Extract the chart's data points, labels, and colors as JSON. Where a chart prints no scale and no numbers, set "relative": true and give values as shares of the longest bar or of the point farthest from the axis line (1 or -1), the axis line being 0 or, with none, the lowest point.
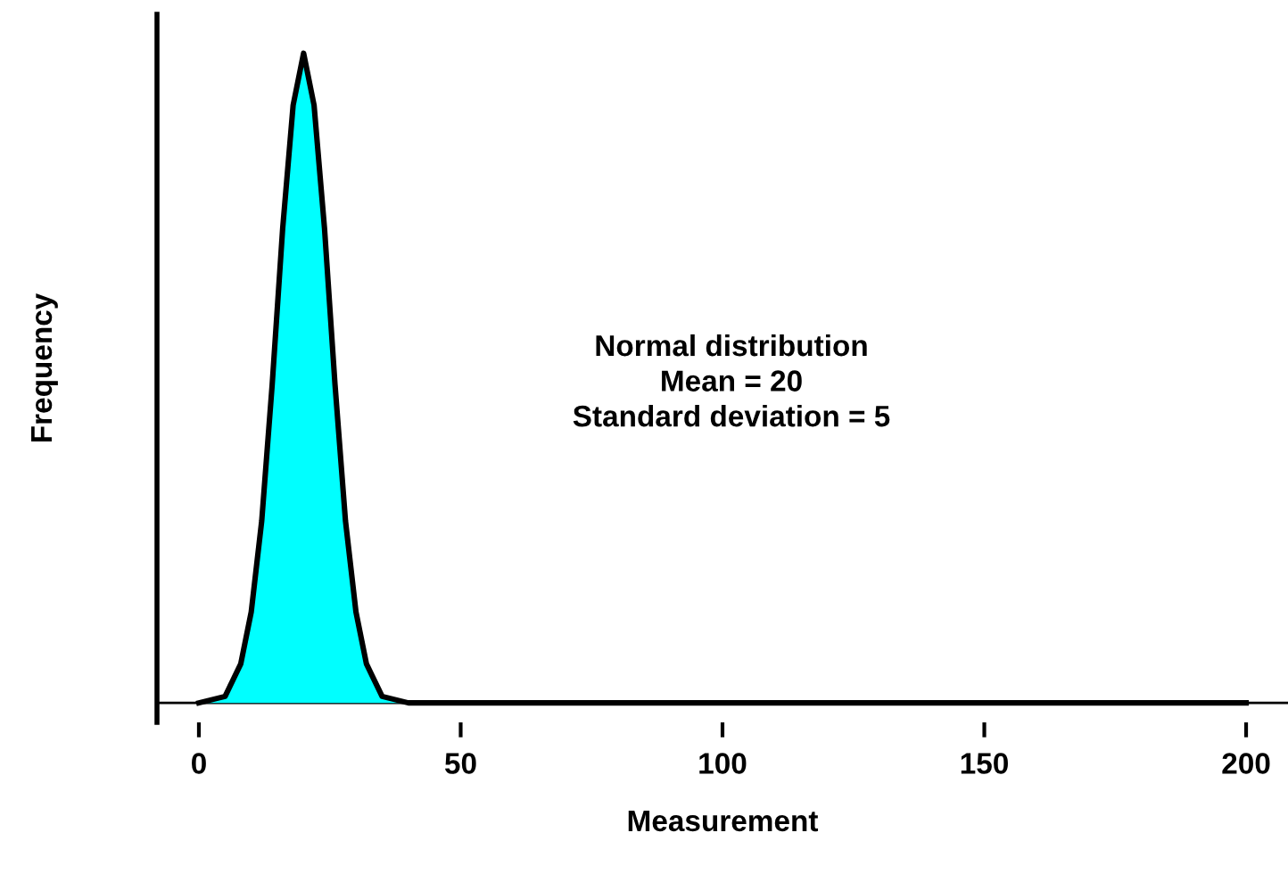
{
  "chart_data": {
    "type": "area",
    "relative": true,
    "xlabel": "Measurement",
    "ylabel": "Frequency",
    "x": [
      0,
      5,
      8,
      10,
      12,
      14,
      16,
      18,
      20,
      22,
      24,
      26,
      28,
      30,
      32,
      35,
      40,
      50,
      100,
      150,
      200
    ],
    "series": [
      {
        "color": "#00ffff",
        "values": [
          0,
          0.01,
          0.06,
          0.14,
          0.28,
          0.49,
          0.73,
          0.92,
          1,
          0.92,
          0.73,
          0.49,
          0.28,
          0.14,
          0.06,
          0.01,
          0,
          0,
          0,
          0,
          0
        ]
      }
    ],
    "xlim": [
      -8,
      208
    ],
    "xticks": [
      0,
      50,
      100,
      150,
      200
    ],
    "grid": false,
    "legend": false,
    "annotations": [
      "Normal distribution\nMean = 20\nStandard deviation = 5"
    ]
  }
}
